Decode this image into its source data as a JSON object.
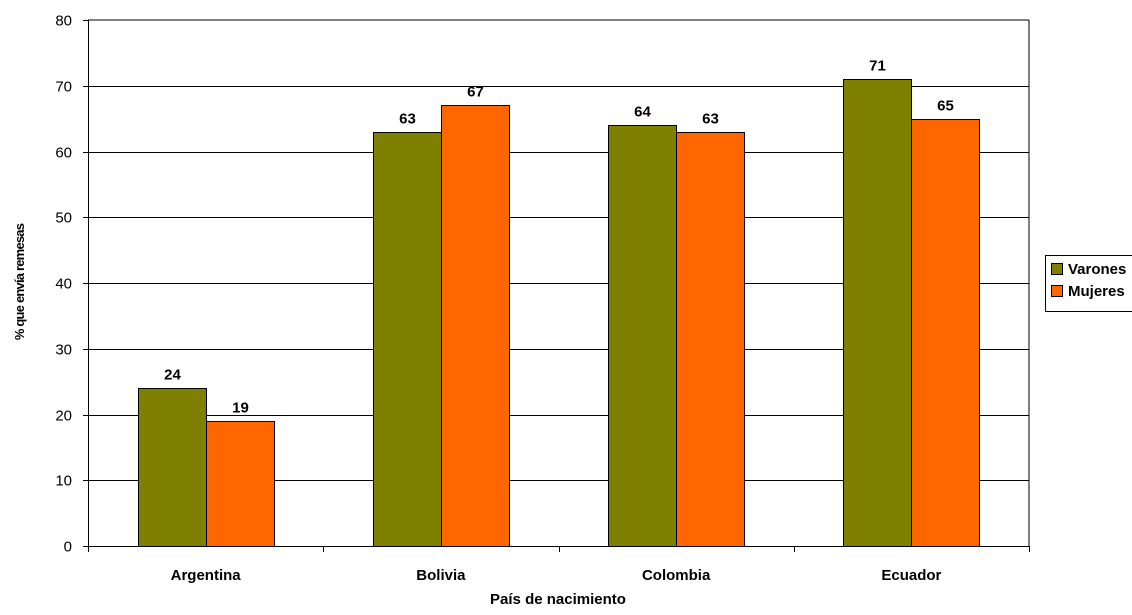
{
  "chart_data": {
    "type": "bar",
    "title": "",
    "xlabel": "País de nacimiento",
    "ylabel": "% que envía remesas",
    "categories": [
      "Argentina",
      "Bolivia",
      "Colombia",
      "Ecuador"
    ],
    "series": [
      {
        "name": "Varones",
        "color": "#808000",
        "values": [
          24,
          63,
          64,
          71
        ]
      },
      {
        "name": "Mujeres",
        "color": "#FF6600",
        "values": [
          19,
          67,
          63,
          65
        ]
      }
    ],
    "ylim": [
      0,
      80
    ],
    "yticks": [
      0,
      10,
      20,
      30,
      40,
      50,
      60,
      70,
      80
    ],
    "grid": true,
    "legend_position": "right",
    "data_labels": true
  }
}
